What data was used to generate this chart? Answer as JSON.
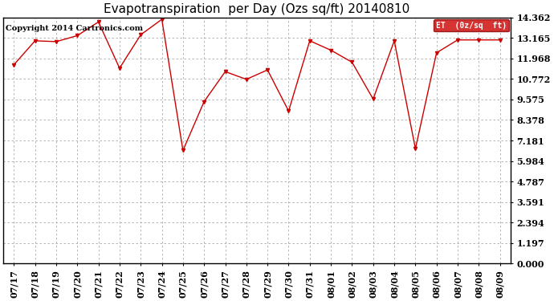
{
  "title": "Evapotranspiration  per Day (Ozs sq/ft) 20140810",
  "copyright": "Copyright 2014 Cartronics.com",
  "legend_label": "ET  (0z/sq  ft)",
  "x_labels": [
    "07/17",
    "07/18",
    "07/19",
    "07/20",
    "07/21",
    "07/22",
    "07/23",
    "07/24",
    "07/25",
    "07/26",
    "07/27",
    "07/28",
    "07/29",
    "07/30",
    "07/31",
    "08/01",
    "08/02",
    "08/03",
    "08/04",
    "08/05",
    "08/06",
    "08/07",
    "08/08",
    "08/09"
  ],
  "y_values": [
    11.6,
    13.0,
    12.95,
    13.3,
    14.1,
    11.4,
    13.35,
    14.25,
    6.6,
    9.45,
    11.2,
    10.75,
    11.3,
    8.9,
    13.0,
    12.45,
    11.75,
    9.6,
    13.0,
    6.7,
    12.3,
    13.05,
    13.05,
    13.05
  ],
  "y_ticks": [
    0.0,
    1.197,
    2.394,
    3.591,
    4.787,
    5.984,
    7.181,
    8.378,
    9.575,
    10.772,
    11.968,
    13.165,
    14.362
  ],
  "ylim": [
    0.0,
    14.362
  ],
  "line_color": "#cc0000",
  "marker": "v",
  "marker_size": 3,
  "background_color": "#ffffff",
  "grid_color": "#aaaaaa",
  "title_fontsize": 11,
  "copyright_fontsize": 7,
  "tick_fontsize": 8,
  "legend_bg": "#cc0000",
  "legend_fg": "#ffffff",
  "legend_fontsize": 7
}
